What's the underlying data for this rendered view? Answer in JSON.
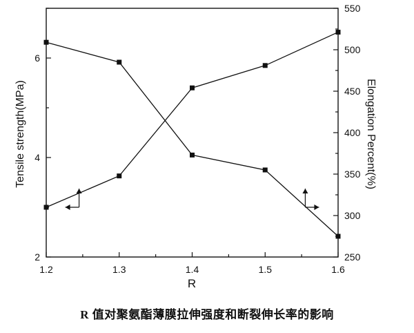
{
  "caption": "R 值对聚氨酯薄膜拉伸强度和断裂伸长率的影响",
  "chart_data": {
    "type": "line",
    "xlabel": "R",
    "ylabel_left": "Tensile strength(MPa)",
    "ylabel_right": "Elongation Percent(%)",
    "x": [
      1.2,
      1.3,
      1.4,
      1.5,
      1.6
    ],
    "xlim": [
      1.2,
      1.6
    ],
    "xticks": [
      "1.2",
      "1.3",
      "1.4",
      "1.5",
      "1.6"
    ],
    "ylim_left": [
      2,
      7
    ],
    "yticks_left": [
      "2",
      "4",
      "6"
    ],
    "ylim_right": [
      250,
      550
    ],
    "yticks_right": [
      "250",
      "300",
      "350",
      "400",
      "450",
      "500",
      "550"
    ],
    "series": [
      {
        "axis": "left",
        "values": [
          3.0,
          3.63,
          5.4,
          5.85,
          6.52
        ],
        "marker": "square",
        "color": "#111111"
      },
      {
        "axis": "right",
        "values": [
          509,
          485,
          373,
          355,
          275
        ],
        "marker": "square",
        "color": "#111111"
      }
    ],
    "annotations": [
      {
        "type": "arrow",
        "at": [
          1.245,
          3.0
        ],
        "axis": "left",
        "points": "up-then-left"
      },
      {
        "type": "arrow",
        "at": [
          1.555,
          3.0
        ],
        "axis": "left",
        "points": "up-then-right"
      }
    ],
    "grid": false,
    "legend": "none"
  }
}
